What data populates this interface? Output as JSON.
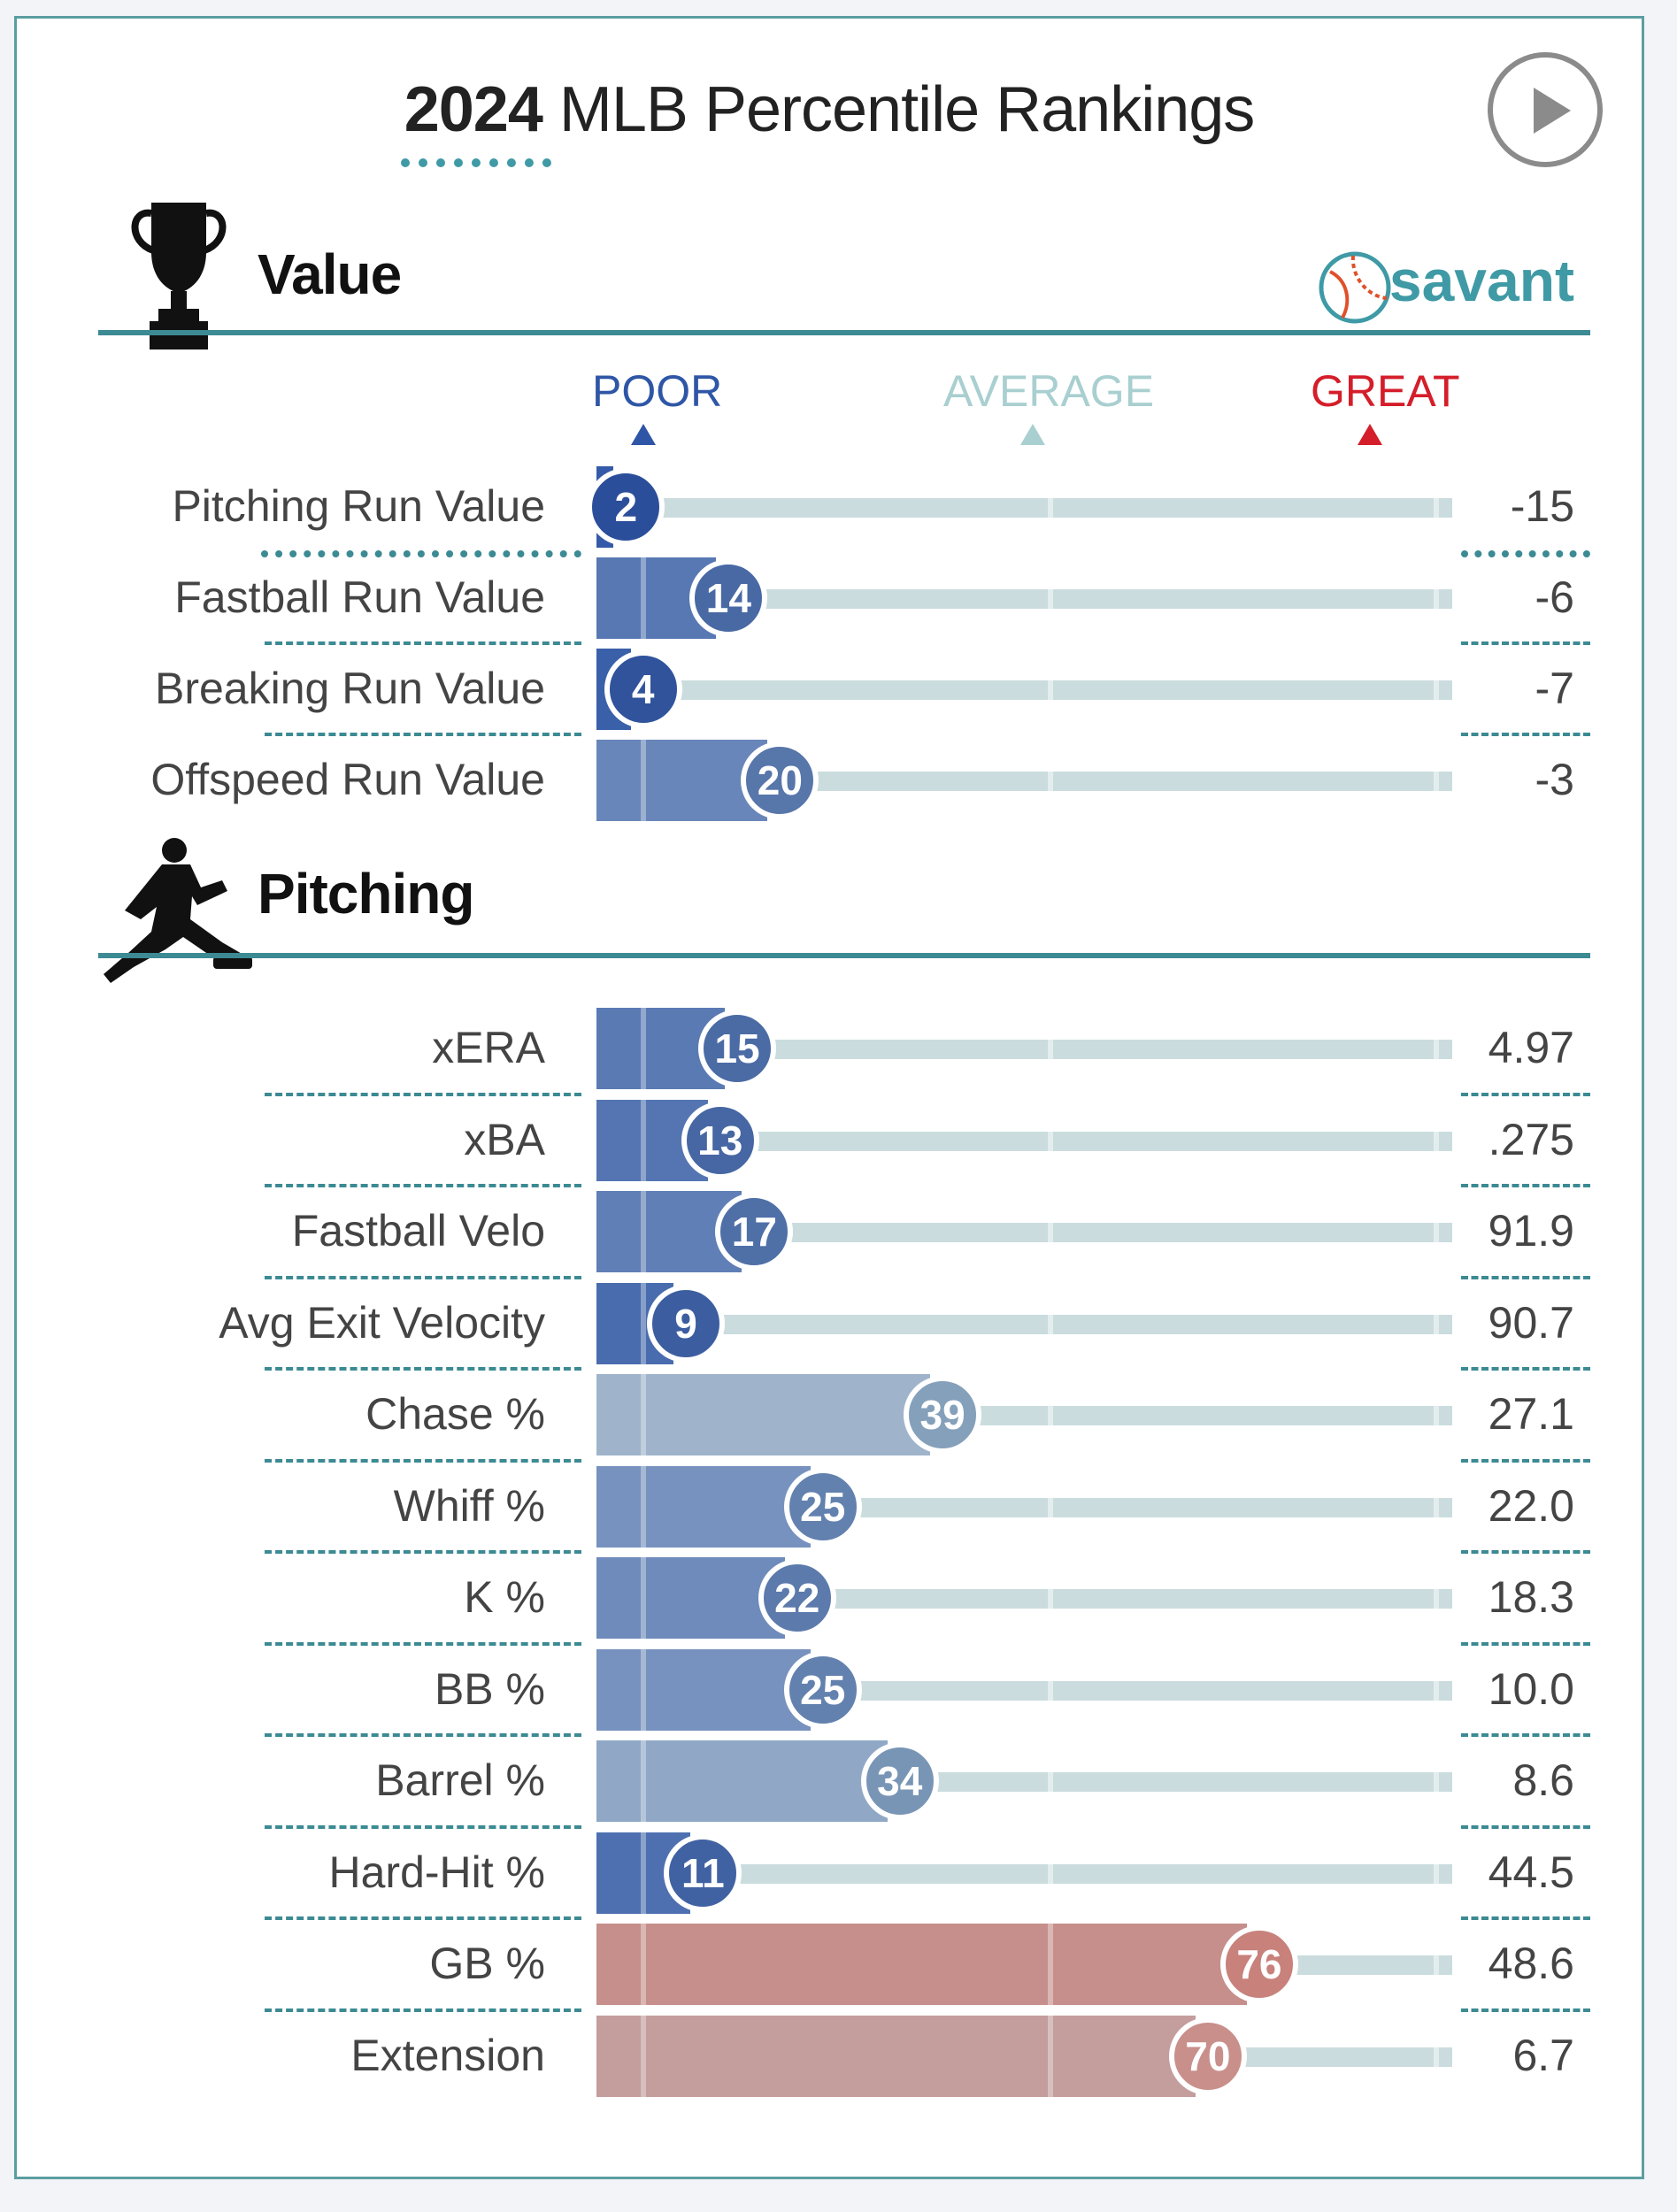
{
  "header": {
    "title_year": "2024",
    "title_rest": "MLB Percentile Rankings",
    "play_button": "play-icon"
  },
  "brand": {
    "name": "savant",
    "icon": "baseball-icon"
  },
  "scale": {
    "poor": "POOR",
    "average": "AVERAGE",
    "great": "GREAT",
    "poor_color": "#2f56a6",
    "average_color": "#a9cfd0",
    "great_color": "#d41e2a"
  },
  "colors": {
    "track": "#cbdcde",
    "accent": "#3c8a93"
  },
  "chart_data": [
    {
      "type": "bar",
      "section": "Value",
      "section_icon": "trophy-icon",
      "categories": [
        "Pitching Run Value",
        "Fastball Run Value",
        "Breaking Run Value",
        "Offspeed Run Value"
      ],
      "percentiles": [
        2,
        14,
        4,
        20
      ],
      "stat_values": [
        "-15",
        "-6",
        "-7",
        "-3"
      ],
      "xlim": [
        0,
        100
      ]
    },
    {
      "type": "bar",
      "section": "Pitching",
      "section_icon": "pitcher-icon",
      "categories": [
        "xERA",
        "xBA",
        "Fastball Velo",
        "Avg Exit Velocity",
        "Chase %",
        "Whiff %",
        "K %",
        "BB %",
        "Barrel %",
        "Hard-Hit %",
        "GB %",
        "Extension"
      ],
      "percentiles": [
        15,
        13,
        17,
        9,
        39,
        25,
        22,
        25,
        34,
        11,
        76,
        70
      ],
      "stat_values": [
        "4.97",
        ".275",
        "91.9",
        "90.7",
        "27.1",
        "22.0",
        "18.3",
        "10.0",
        "8.6",
        "44.5",
        "48.6",
        "6.7"
      ],
      "xlim": [
        0,
        100
      ]
    }
  ]
}
